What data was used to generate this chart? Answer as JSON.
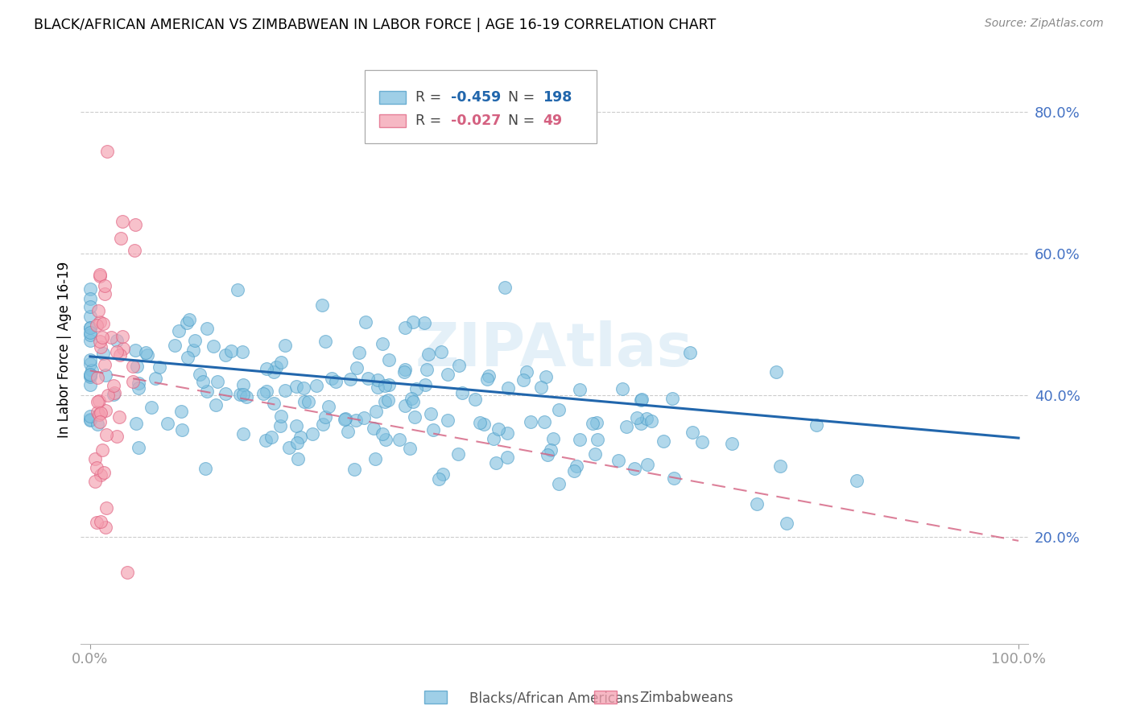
{
  "title": "BLACK/AFRICAN AMERICAN VS ZIMBABWEAN IN LABOR FORCE | AGE 16-19 CORRELATION CHART",
  "source": "Source: ZipAtlas.com",
  "ylabel": "In Labor Force | Age 16-19",
  "y_tick_values": [
    0.2,
    0.4,
    0.6,
    0.8
  ],
  "x_lim": [
    -0.01,
    1.01
  ],
  "y_lim": [
    0.05,
    0.88
  ],
  "legend_labels": [
    "Blacks/African Americans",
    "Zimbabweans"
  ],
  "blue_color": "#7fbfdf",
  "blue_edge_color": "#4a9cc7",
  "blue_line_color": "#2166ac",
  "pink_color": "#f4a0b0",
  "pink_edge_color": "#e06080",
  "pink_line_color": "#d46080",
  "watermark": "ZIPAtlas",
  "blue_R": -0.459,
  "blue_N": 198,
  "pink_R": -0.027,
  "pink_N": 49,
  "background_color": "#ffffff",
  "grid_color": "#cccccc",
  "title_color": "#000000",
  "tick_label_color": "#4472c4"
}
